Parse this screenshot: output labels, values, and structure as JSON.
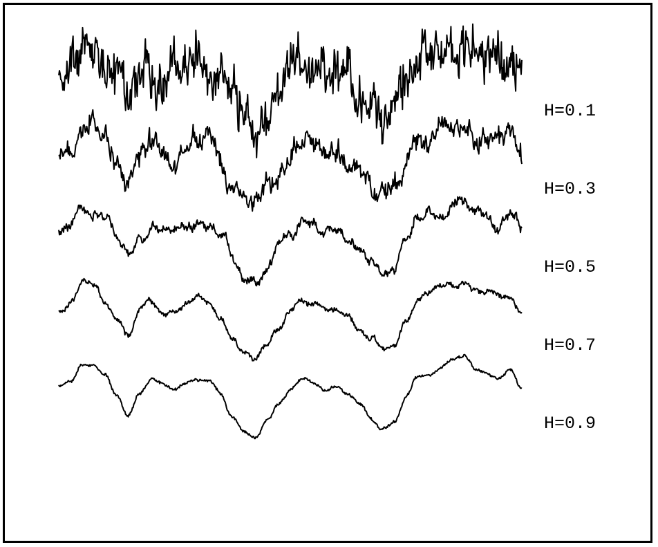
{
  "chart_data": {
    "type": "line",
    "title": "",
    "xlabel": "",
    "ylabel": "",
    "axes_visible": false,
    "grid": false,
    "legend": "inline labels at right end of each trace",
    "colors": {
      "line": "#000000",
      "background": "#ffffff",
      "frame": "#000000"
    },
    "x": [
      0.0,
      0.025,
      0.05,
      0.075,
      0.1,
      0.125,
      0.15,
      0.175,
      0.2,
      0.225,
      0.25,
      0.275,
      0.3,
      0.325,
      0.35,
      0.375,
      0.4,
      0.425,
      0.45,
      0.475,
      0.5,
      0.525,
      0.55,
      0.575,
      0.6,
      0.625,
      0.65,
      0.675,
      0.7,
      0.725,
      0.75,
      0.775,
      0.8,
      0.825,
      0.85,
      0.875,
      0.9,
      0.925,
      0.95,
      0.975,
      1.0
    ],
    "base": [
      0.62,
      0.7,
      0.92,
      0.86,
      0.7,
      0.46,
      0.25,
      0.56,
      0.72,
      0.63,
      0.6,
      0.66,
      0.7,
      0.64,
      0.48,
      0.22,
      0.05,
      0.0,
      0.2,
      0.4,
      0.56,
      0.68,
      0.64,
      0.56,
      0.6,
      0.52,
      0.4,
      0.25,
      0.1,
      0.13,
      0.44,
      0.7,
      0.78,
      0.86,
      0.95,
      1.0,
      0.86,
      0.8,
      0.7,
      0.76,
      0.55
    ],
    "series": [
      {
        "name": "H=0.1",
        "H": 0.1
      },
      {
        "name": "H=0.3",
        "H": 0.3
      },
      {
        "name": "H=0.5",
        "H": 0.5
      },
      {
        "name": "H=0.7",
        "H": 0.7
      },
      {
        "name": "H=0.9",
        "H": 0.9
      }
    ]
  }
}
